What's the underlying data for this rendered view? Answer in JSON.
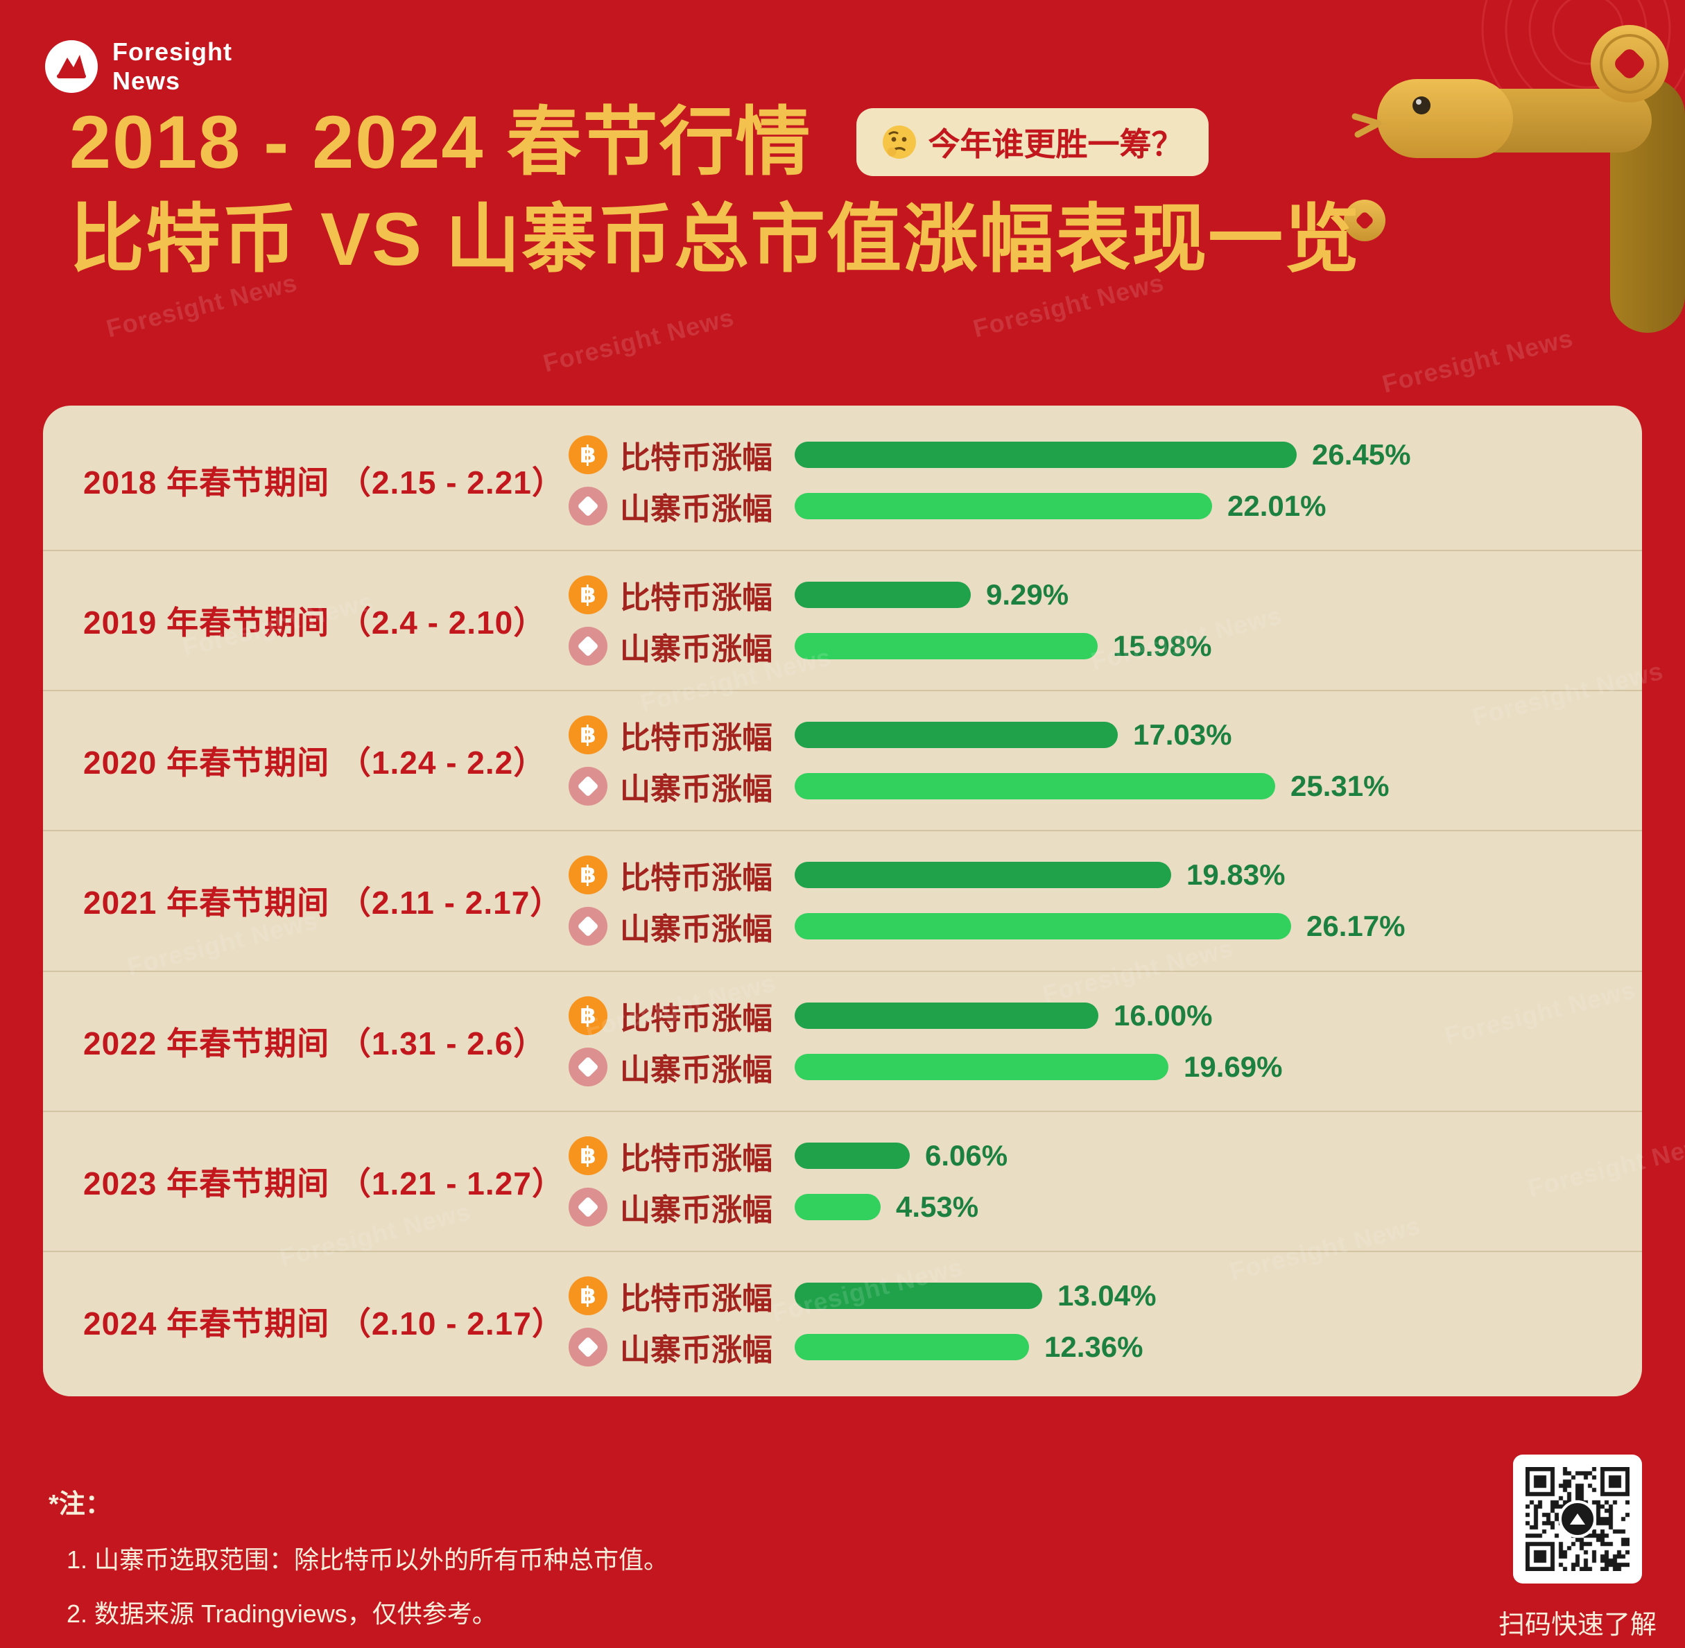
{
  "meta": {
    "brand": {
      "line1": "Foresight",
      "line2": "News"
    },
    "watermark": "Foresight News"
  },
  "header": {
    "title_line1": "2018 - 2024 春节行情",
    "badge_text": "今年谁更胜一筹？",
    "title_line2": "比特币 VS 山寨币总市值涨幅表现一览"
  },
  "chart_data": {
    "type": "bar",
    "orientation": "horizontal",
    "unit": "%",
    "title": "2018 - 2024 春节行情 比特币 VS 山寨币总市值涨幅表现一览",
    "series_labels": {
      "btc": "比特币涨幅",
      "alt": "山寨币涨幅"
    },
    "x_range": [
      0,
      26.45
    ],
    "rows": [
      {
        "label": "2018 年春节期间 （2.15 - 2.21）",
        "btc": 26.45,
        "btc_text": "26.45%",
        "alt": 22.01,
        "alt_text": "22.01%"
      },
      {
        "label": "2019 年春节期间 （2.4 - 2.10）",
        "btc": 9.29,
        "btc_text": "9.29%",
        "alt": 15.98,
        "alt_text": "15.98%"
      },
      {
        "label": "2020 年春节期间 （1.24 - 2.2）",
        "btc": 17.03,
        "btc_text": "17.03%",
        "alt": 25.31,
        "alt_text": "25.31%"
      },
      {
        "label": "2021 年春节期间 （2.11 - 2.17）",
        "btc": 19.83,
        "btc_text": "19.83%",
        "alt": 26.17,
        "alt_text": "26.17%"
      },
      {
        "label": "2022 年春节期间 （1.31 - 2.6）",
        "btc": 16.0,
        "btc_text": "16.00%",
        "alt": 19.69,
        "alt_text": "19.69%"
      },
      {
        "label": "2023 年春节期间 （1.21 - 1.27）",
        "btc": 6.06,
        "btc_text": "6.06%",
        "alt": 4.53,
        "alt_text": "4.53%"
      },
      {
        "label": "2024 年春节期间 （2.10 - 2.17）",
        "btc": 13.04,
        "btc_text": "13.04%",
        "alt": 12.36,
        "alt_text": "12.36%"
      }
    ]
  },
  "icons": {
    "bitcoin": "฿"
  },
  "footer": {
    "note_title": "*注：",
    "notes": [
      "1. 山寨币选取范围：除比特币以外的所有币种总市值。",
      "2. 数据来源 Tradingviews，仅供参考。"
    ],
    "qr_caption": "扫码快速了解"
  },
  "colors": {
    "background_red": "#C4161E",
    "title_gold": "#F2C14E",
    "panel_bg": "#E9DDC3",
    "divider": "#D2C3A2",
    "label_red": "#C2171D",
    "bar_label_red": "#A3231E",
    "btc_bar_green": "#1FA24A",
    "alt_bar_green": "#32D15E",
    "value_green": "#1B8040",
    "bitcoin_orange": "#F7941D",
    "alt_rose": "#DD9090",
    "badge_bg": "#F2E4BF",
    "note_cream": "#F7EEDC"
  }
}
